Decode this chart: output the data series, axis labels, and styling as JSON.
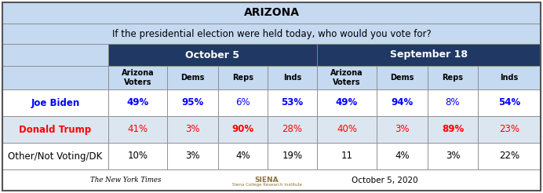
{
  "title": "ARIZONA",
  "subtitle": "If the presidential election were held today, who would you vote for?",
  "header1": "October 5",
  "header2": "September 18",
  "col_headers": [
    "Arizona\nVoters",
    "Dems",
    "Reps",
    "Inds",
    "Arizona\nVoters",
    "Dems",
    "Reps",
    "Inds"
  ],
  "row_labels": [
    "Joe Biden",
    "Donald Trump",
    "Other/Not Voting/DK"
  ],
  "row_label_colors": [
    "#0000ff",
    "#ff0000",
    "#000000"
  ],
  "row_label_bold": [
    true,
    true,
    false
  ],
  "data": [
    [
      "49%",
      "95%",
      "6%",
      "53%",
      "49%",
      "94%",
      "8%",
      "54%"
    ],
    [
      "41%",
      "3%",
      "90%",
      "28%",
      "40%",
      "3%",
      "89%",
      "23%"
    ],
    [
      "10%",
      "3%",
      "4%",
      "19%",
      "11",
      "4%",
      "3%",
      "22%"
    ]
  ],
  "data_colors": [
    [
      "#0000ff",
      "#0000ff",
      "#0000ff",
      "#0000ff",
      "#0000ff",
      "#0000ff",
      "#0000ff",
      "#0000ff"
    ],
    [
      "#ff0000",
      "#ff0000",
      "#ff0000",
      "#ff0000",
      "#ff0000",
      "#ff0000",
      "#ff0000",
      "#ff0000"
    ],
    [
      "#000000",
      "#000000",
      "#000000",
      "#000000",
      "#000000",
      "#000000",
      "#000000",
      "#000000"
    ]
  ],
  "data_bold": [
    [
      true,
      true,
      false,
      true,
      true,
      true,
      false,
      true
    ],
    [
      false,
      false,
      true,
      false,
      false,
      false,
      true,
      false
    ],
    [
      false,
      false,
      false,
      false,
      false,
      false,
      false,
      false
    ]
  ],
  "bg_title": "#c5d9f1",
  "bg_header_dark": "#1f3864",
  "bg_header_light": "#c5d9f1",
  "bg_row_biden": "#ffffff",
  "bg_row_trump": "#dce6f1",
  "bg_row_other": "#ffffff",
  "footer_text": "October 5, 2020",
  "fig_width": 6.92,
  "fig_height": 2.46,
  "dpi": 100
}
